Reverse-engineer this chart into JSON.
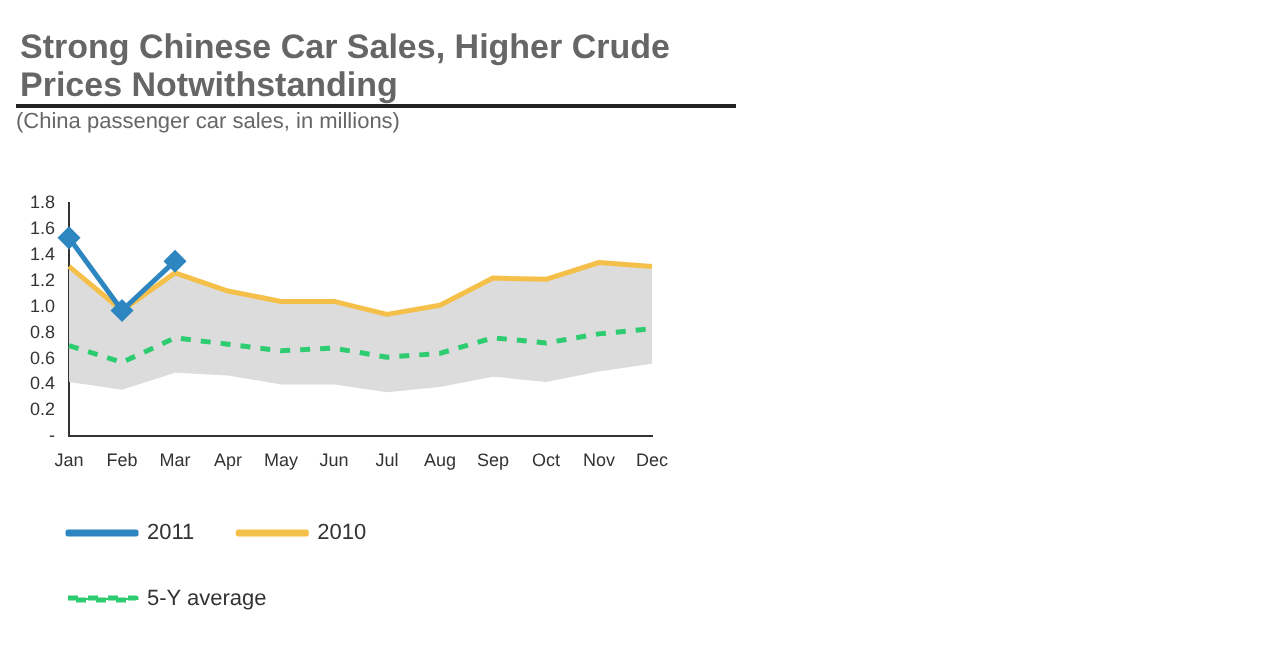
{
  "chart_data": {
    "type": "line",
    "title": "Strong Chinese Car Sales, Higher Crude Prices Notwithstanding",
    "subtitle": "(China passenger car sales, in millions)",
    "categories": [
      "Jan",
      "Feb",
      "Mar",
      "Apr",
      "May",
      "Jun",
      "Jul",
      "Aug",
      "Sep",
      "Oct",
      "Nov",
      "Dec"
    ],
    "series": [
      {
        "name": "2011",
        "color": "#2e86c1",
        "marker": "diamond",
        "line_style": "solid",
        "values": [
          1.53,
          0.97,
          1.35,
          null,
          null,
          null,
          null,
          null,
          null,
          null,
          null,
          null
        ]
      },
      {
        "name": "2010",
        "color": "#f5c04a",
        "marker": "none",
        "line_style": "solid",
        "values": [
          1.31,
          0.97,
          1.26,
          1.12,
          1.04,
          1.04,
          0.94,
          1.01,
          1.22,
          1.21,
          1.34,
          1.31
        ]
      },
      {
        "name": "5-Y average",
        "color": "#2ecc71",
        "marker": "none",
        "line_style": "dashed",
        "values": [
          0.7,
          0.57,
          0.76,
          0.71,
          0.66,
          0.68,
          0.61,
          0.64,
          0.76,
          0.72,
          0.79,
          0.83
        ],
        "lower": [
          0.42,
          0.36,
          0.49,
          0.47,
          0.4,
          0.4,
          0.34,
          0.38,
          0.46,
          0.42,
          0.5,
          0.56
        ],
        "upper": [
          1.31,
          0.97,
          1.26,
          1.12,
          1.04,
          1.04,
          0.94,
          1.01,
          1.22,
          1.21,
          1.34,
          1.31
        ]
      }
    ],
    "ylim": [
      0,
      1.8
    ],
    "yticks": [
      {
        "value": 0,
        "label": "-"
      },
      0.2,
      0.4,
      0.6,
      0.8,
      {
        "value": 1,
        "label": "1.0"
      },
      1.2,
      1.4,
      1.6,
      1.8
    ],
    "grid": false,
    "legend": "bottom"
  }
}
